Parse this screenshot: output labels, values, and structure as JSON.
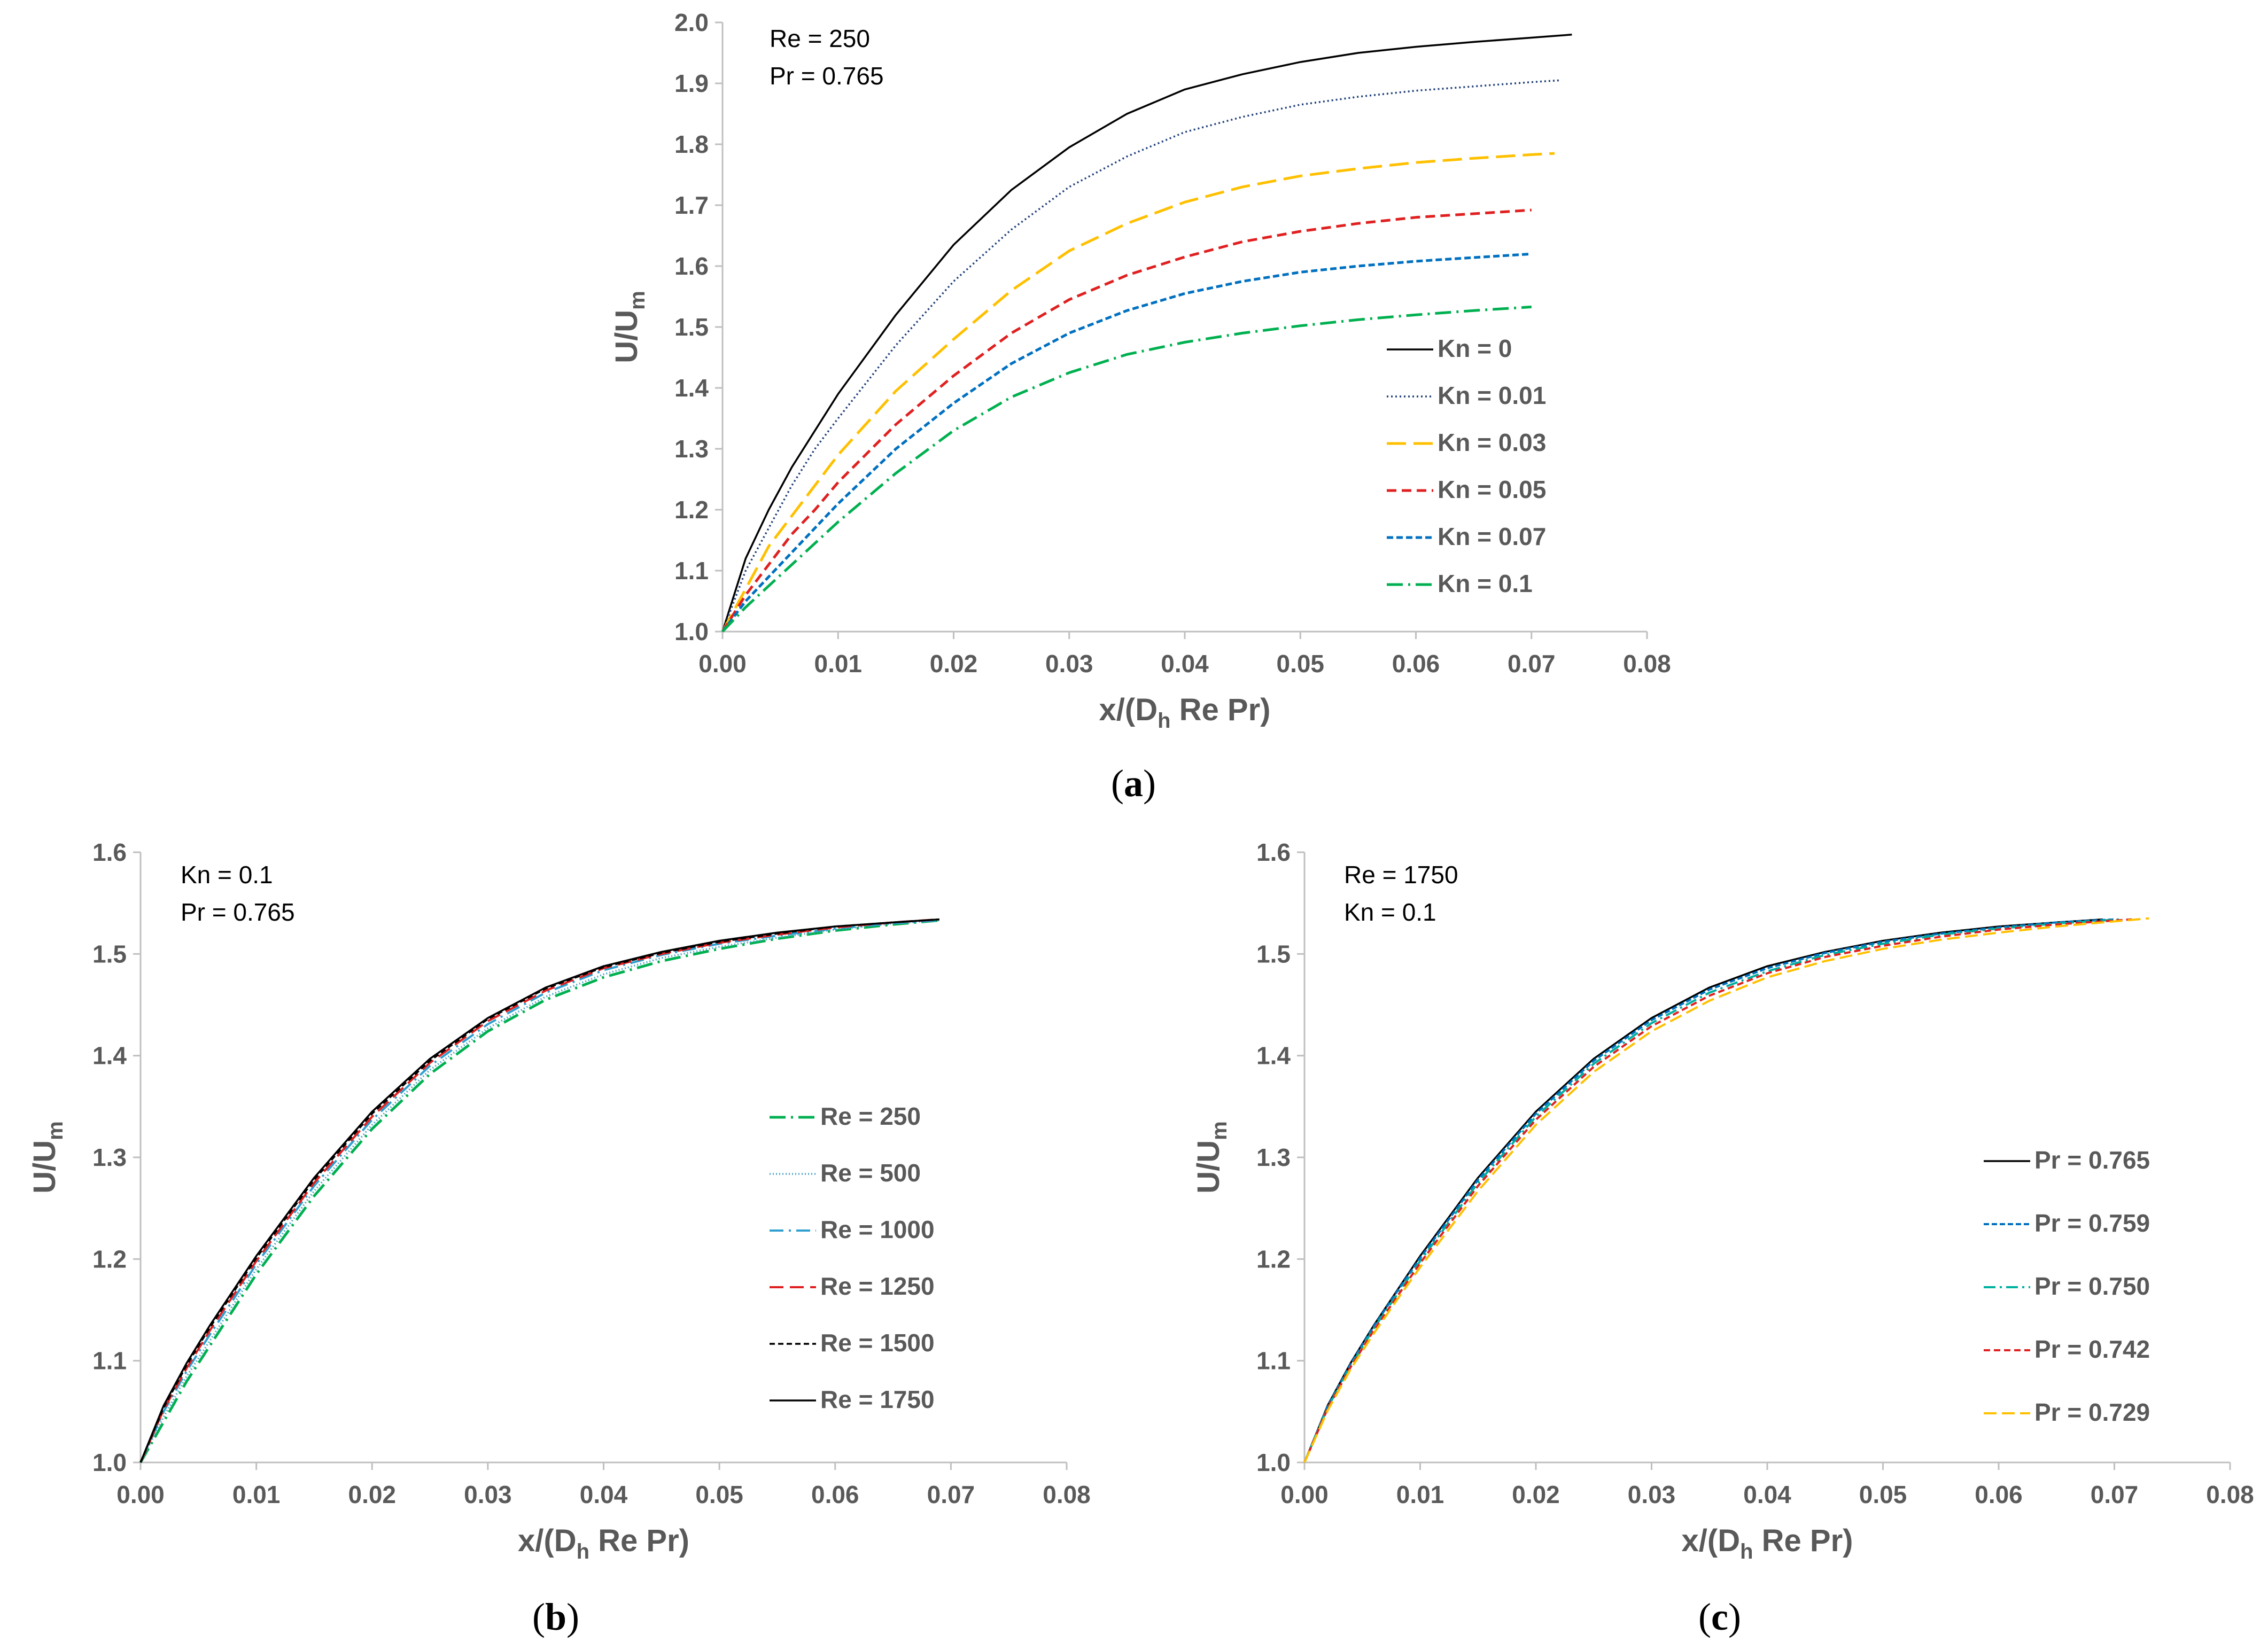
{
  "figure": {
    "axis_color": "#bfbfbf",
    "text_color": "#595959"
  },
  "chart_data": [
    {
      "id": "a",
      "type": "line",
      "caption": "a",
      "xlabel": "x/(D_h Re Pr)",
      "xlabel_parts": {
        "pre": "x/(D",
        "sub": "h",
        "post": " Re Pr)"
      },
      "ylabel_parts": {
        "pre": "U/U",
        "sub": "m"
      },
      "xlim": [
        0,
        0.08
      ],
      "ylim": [
        1.0,
        2.0
      ],
      "xticks": [
        "0.00",
        "0.01",
        "0.02",
        "0.03",
        "0.04",
        "0.05",
        "0.06",
        "0.07",
        "0.08"
      ],
      "yticks": [
        "1.0",
        "1.1",
        "1.2",
        "1.3",
        "1.4",
        "1.5",
        "1.6",
        "1.7",
        "1.8",
        "1.9",
        "2.0"
      ],
      "annotations": [
        "Re = 250",
        "Pr = 0.765"
      ],
      "legend_position": "right",
      "series": [
        {
          "name": "Kn = 0",
          "color": "#000000",
          "dash": "",
          "width": 3.5,
          "x": [
            0,
            0.002,
            0.004,
            0.006,
            0.008,
            0.01,
            0.015,
            0.02,
            0.025,
            0.03,
            0.035,
            0.04,
            0.045,
            0.05,
            0.055,
            0.06,
            0.065,
            0.07,
            0.0735
          ],
          "y": [
            1.0,
            1.12,
            1.2,
            1.27,
            1.33,
            1.39,
            1.52,
            1.635,
            1.725,
            1.795,
            1.85,
            1.89,
            1.915,
            1.935,
            1.95,
            1.96,
            1.968,
            1.975,
            1.98
          ]
        },
        {
          "name": "Kn = 0.01",
          "color": "#1f3f7a",
          "dash": "3,5",
          "width": 3.5,
          "x": [
            0,
            0.002,
            0.004,
            0.006,
            0.008,
            0.01,
            0.015,
            0.02,
            0.025,
            0.03,
            0.035,
            0.04,
            0.045,
            0.05,
            0.055,
            0.06,
            0.065,
            0.07,
            0.0725
          ],
          "y": [
            1.0,
            1.1,
            1.17,
            1.24,
            1.3,
            1.35,
            1.47,
            1.575,
            1.66,
            1.73,
            1.78,
            1.82,
            1.845,
            1.865,
            1.878,
            1.888,
            1.895,
            1.902,
            1.905
          ]
        },
        {
          "name": "Kn = 0.03",
          "color": "#ffc000",
          "dash": "36,14",
          "width": 5,
          "x": [
            0,
            0.002,
            0.004,
            0.006,
            0.008,
            0.01,
            0.015,
            0.02,
            0.025,
            0.03,
            0.035,
            0.04,
            0.045,
            0.05,
            0.055,
            0.06,
            0.065,
            0.07,
            0.072
          ],
          "y": [
            1.0,
            1.07,
            1.14,
            1.19,
            1.24,
            1.29,
            1.395,
            1.48,
            1.56,
            1.625,
            1.67,
            1.705,
            1.73,
            1.748,
            1.76,
            1.77,
            1.777,
            1.783,
            1.785
          ]
        },
        {
          "name": "Kn = 0.05",
          "color": "#e02020",
          "dash": "18,10",
          "width": 5,
          "x": [
            0,
            0.002,
            0.004,
            0.006,
            0.008,
            0.01,
            0.015,
            0.02,
            0.025,
            0.03,
            0.035,
            0.04,
            0.045,
            0.05,
            0.055,
            0.06,
            0.065,
            0.07
          ],
          "y": [
            1.0,
            1.06,
            1.11,
            1.16,
            1.2,
            1.245,
            1.34,
            1.42,
            1.49,
            1.545,
            1.585,
            1.615,
            1.64,
            1.657,
            1.67,
            1.68,
            1.686,
            1.692
          ]
        },
        {
          "name": "Kn = 0.07",
          "color": "#0070c0",
          "dash": "12,6",
          "width": 5,
          "x": [
            0,
            0.002,
            0.004,
            0.006,
            0.008,
            0.01,
            0.015,
            0.02,
            0.025,
            0.03,
            0.035,
            0.04,
            0.045,
            0.05,
            0.055,
            0.06,
            0.065,
            0.07
          ],
          "y": [
            1.0,
            1.05,
            1.09,
            1.13,
            1.17,
            1.21,
            1.3,
            1.375,
            1.44,
            1.49,
            1.527,
            1.555,
            1.575,
            1.59,
            1.6,
            1.608,
            1.614,
            1.62
          ]
        },
        {
          "name": "Kn = 0.1",
          "color": "#00b050",
          "dash": "30,10,4,10",
          "width": 5,
          "x": [
            0,
            0.002,
            0.004,
            0.006,
            0.008,
            0.01,
            0.015,
            0.02,
            0.025,
            0.03,
            0.035,
            0.04,
            0.045,
            0.05,
            0.055,
            0.06,
            0.065,
            0.07
          ],
          "y": [
            1.0,
            1.04,
            1.075,
            1.11,
            1.145,
            1.18,
            1.26,
            1.33,
            1.385,
            1.425,
            1.455,
            1.475,
            1.49,
            1.502,
            1.512,
            1.52,
            1.527,
            1.533
          ]
        }
      ]
    },
    {
      "id": "b",
      "type": "line",
      "caption": "b",
      "xlabel": "x/(D_h Re Pr)",
      "xlabel_parts": {
        "pre": "x/(D",
        "sub": "h",
        "post": " Re Pr)"
      },
      "ylabel_parts": {
        "pre": "U/U",
        "sub": "m"
      },
      "xlim": [
        0,
        0.08
      ],
      "ylim": [
        1.0,
        1.6
      ],
      "xticks": [
        "0.00",
        "0.01",
        "0.02",
        "0.03",
        "0.04",
        "0.05",
        "0.06",
        "0.07",
        "0.08"
      ],
      "yticks": [
        "1.0",
        "1.1",
        "1.2",
        "1.3",
        "1.4",
        "1.5",
        "1.6"
      ],
      "annotations": [
        "Kn = 0.1",
        "Pr = 0.765"
      ],
      "legend_position": "right",
      "series": [
        {
          "name": "Re = 250",
          "color": "#00b050",
          "dash": "30,10,4,10",
          "width": 5,
          "x": [
            0,
            0.002,
            0.004,
            0.006,
            0.008,
            0.01,
            0.015,
            0.02,
            0.025,
            0.03,
            0.035,
            0.04,
            0.045,
            0.05,
            0.055,
            0.06,
            0.065,
            0.069
          ],
          "y": [
            1.0,
            1.04,
            1.08,
            1.115,
            1.15,
            1.185,
            1.262,
            1.328,
            1.382,
            1.424,
            1.455,
            1.477,
            1.493,
            1.505,
            1.515,
            1.523,
            1.529,
            1.533
          ]
        },
        {
          "name": "Re = 500",
          "color": "#4aa3c8",
          "dash": "2,4",
          "width": 3.5,
          "x": [
            0,
            0.002,
            0.004,
            0.006,
            0.008,
            0.01,
            0.015,
            0.02,
            0.025,
            0.03,
            0.035,
            0.04,
            0.045,
            0.05,
            0.055,
            0.06,
            0.065,
            0.069
          ],
          "y": [
            1.0,
            1.045,
            1.085,
            1.12,
            1.155,
            1.19,
            1.267,
            1.332,
            1.386,
            1.427,
            1.458,
            1.48,
            1.496,
            1.507,
            1.516,
            1.524,
            1.53,
            1.533
          ]
        },
        {
          "name": "Re = 1000",
          "color": "#2e9fd0",
          "dash": "26,10,4,10",
          "width": 4,
          "x": [
            0,
            0.002,
            0.004,
            0.006,
            0.008,
            0.01,
            0.015,
            0.02,
            0.025,
            0.03,
            0.035,
            0.04,
            0.045,
            0.05,
            0.055,
            0.06,
            0.065,
            0.069
          ],
          "y": [
            1.0,
            1.05,
            1.09,
            1.126,
            1.16,
            1.195,
            1.272,
            1.337,
            1.39,
            1.431,
            1.462,
            1.484,
            1.499,
            1.51,
            1.518,
            1.525,
            1.53,
            1.533
          ]
        },
        {
          "name": "Re = 1250",
          "color": "#e02020",
          "dash": "26,12",
          "width": 4,
          "x": [
            0,
            0.002,
            0.004,
            0.006,
            0.008,
            0.01,
            0.015,
            0.02,
            0.025,
            0.03,
            0.035,
            0.04,
            0.045,
            0.05,
            0.055,
            0.06,
            0.065,
            0.069
          ],
          "y": [
            1.0,
            1.052,
            1.093,
            1.13,
            1.164,
            1.198,
            1.275,
            1.34,
            1.393,
            1.434,
            1.464,
            1.486,
            1.5,
            1.511,
            1.519,
            1.526,
            1.531,
            1.534
          ]
        },
        {
          "name": "Re = 1500",
          "color": "#000000",
          "dash": "10,6",
          "width": 3.5,
          "x": [
            0,
            0.002,
            0.004,
            0.006,
            0.008,
            0.01,
            0.015,
            0.02,
            0.025,
            0.03,
            0.035,
            0.04,
            0.045,
            0.05,
            0.055,
            0.06,
            0.065,
            0.069
          ],
          "y": [
            1.0,
            1.054,
            1.096,
            1.133,
            1.167,
            1.201,
            1.278,
            1.343,
            1.395,
            1.436,
            1.466,
            1.487,
            1.501,
            1.512,
            1.52,
            1.527,
            1.531,
            1.534
          ]
        },
        {
          "name": "Re = 1750",
          "color": "#000000",
          "dash": "",
          "width": 3.5,
          "x": [
            0,
            0.002,
            0.004,
            0.006,
            0.008,
            0.01,
            0.015,
            0.02,
            0.025,
            0.03,
            0.035,
            0.04,
            0.045,
            0.05,
            0.055,
            0.06,
            0.065,
            0.069
          ],
          "y": [
            1.0,
            1.056,
            1.098,
            1.135,
            1.169,
            1.203,
            1.28,
            1.345,
            1.397,
            1.437,
            1.467,
            1.488,
            1.502,
            1.513,
            1.521,
            1.527,
            1.531,
            1.534
          ]
        }
      ]
    },
    {
      "id": "c",
      "type": "line",
      "caption": "c",
      "xlabel": "x/(D_h Re Pr)",
      "xlabel_parts": {
        "pre": "x/(D",
        "sub": "h",
        "post": " Re Pr)"
      },
      "ylabel_parts": {
        "pre": "U/U",
        "sub": "m"
      },
      "xlim": [
        0,
        0.08
      ],
      "ylim": [
        1.0,
        1.6
      ],
      "xticks": [
        "0.00",
        "0.01",
        "0.02",
        "0.03",
        "0.04",
        "0.05",
        "0.06",
        "0.07",
        "0.08"
      ],
      "yticks": [
        "1.0",
        "1.1",
        "1.2",
        "1.3",
        "1.4",
        "1.5",
        "1.6"
      ],
      "annotations": [
        "Re = 1750",
        "Kn = 0.1"
      ],
      "legend_position": "right",
      "series": [
        {
          "name": "Pr = 0.765",
          "color": "#000000",
          "dash": "",
          "width": 3.5,
          "x": [
            0,
            0.002,
            0.004,
            0.006,
            0.008,
            0.01,
            0.015,
            0.02,
            0.025,
            0.03,
            0.035,
            0.04,
            0.045,
            0.05,
            0.055,
            0.06,
            0.065,
            0.069
          ],
          "y": [
            1.0,
            1.056,
            1.098,
            1.135,
            1.169,
            1.203,
            1.28,
            1.345,
            1.397,
            1.437,
            1.467,
            1.488,
            1.502,
            1.513,
            1.521,
            1.527,
            1.531,
            1.534
          ]
        },
        {
          "name": "Pr = 0.759",
          "color": "#0070c0",
          "dash": "10,5",
          "width": 4,
          "x": [
            0,
            0.002,
            0.004,
            0.006,
            0.008,
            0.01,
            0.015,
            0.02,
            0.025,
            0.03,
            0.035,
            0.04,
            0.045,
            0.05,
            0.055,
            0.06,
            0.065,
            0.07
          ],
          "y": [
            1.0,
            1.055,
            1.097,
            1.134,
            1.168,
            1.201,
            1.278,
            1.343,
            1.395,
            1.435,
            1.465,
            1.486,
            1.501,
            1.512,
            1.52,
            1.526,
            1.531,
            1.534
          ]
        },
        {
          "name": "Pr = 0.750",
          "color": "#00b0a0",
          "dash": "22,8,4,8",
          "width": 4,
          "x": [
            0,
            0.002,
            0.004,
            0.006,
            0.008,
            0.01,
            0.015,
            0.02,
            0.025,
            0.03,
            0.035,
            0.04,
            0.045,
            0.05,
            0.055,
            0.06,
            0.065,
            0.0705
          ],
          "y": [
            1.0,
            1.054,
            1.095,
            1.132,
            1.165,
            1.198,
            1.275,
            1.34,
            1.392,
            1.432,
            1.462,
            1.483,
            1.499,
            1.51,
            1.519,
            1.525,
            1.53,
            1.534
          ]
        },
        {
          "name": "Pr = 0.742",
          "color": "#e02020",
          "dash": "12,7",
          "width": 4,
          "x": [
            0,
            0.002,
            0.004,
            0.006,
            0.008,
            0.01,
            0.015,
            0.02,
            0.025,
            0.03,
            0.035,
            0.04,
            0.045,
            0.05,
            0.055,
            0.06,
            0.065,
            0.0715
          ],
          "y": [
            1.0,
            1.053,
            1.094,
            1.13,
            1.163,
            1.196,
            1.272,
            1.337,
            1.389,
            1.429,
            1.459,
            1.481,
            1.497,
            1.508,
            1.517,
            1.524,
            1.529,
            1.534
          ]
        },
        {
          "name": "Pr = 0.729",
          "color": "#ffc000",
          "dash": "24,10",
          "width": 4,
          "x": [
            0,
            0.002,
            0.004,
            0.006,
            0.008,
            0.01,
            0.015,
            0.02,
            0.025,
            0.03,
            0.035,
            0.04,
            0.045,
            0.05,
            0.055,
            0.06,
            0.065,
            0.073
          ],
          "y": [
            1.0,
            1.051,
            1.092,
            1.127,
            1.16,
            1.192,
            1.267,
            1.332,
            1.384,
            1.424,
            1.454,
            1.477,
            1.493,
            1.505,
            1.514,
            1.521,
            1.527,
            1.535
          ]
        }
      ]
    }
  ]
}
